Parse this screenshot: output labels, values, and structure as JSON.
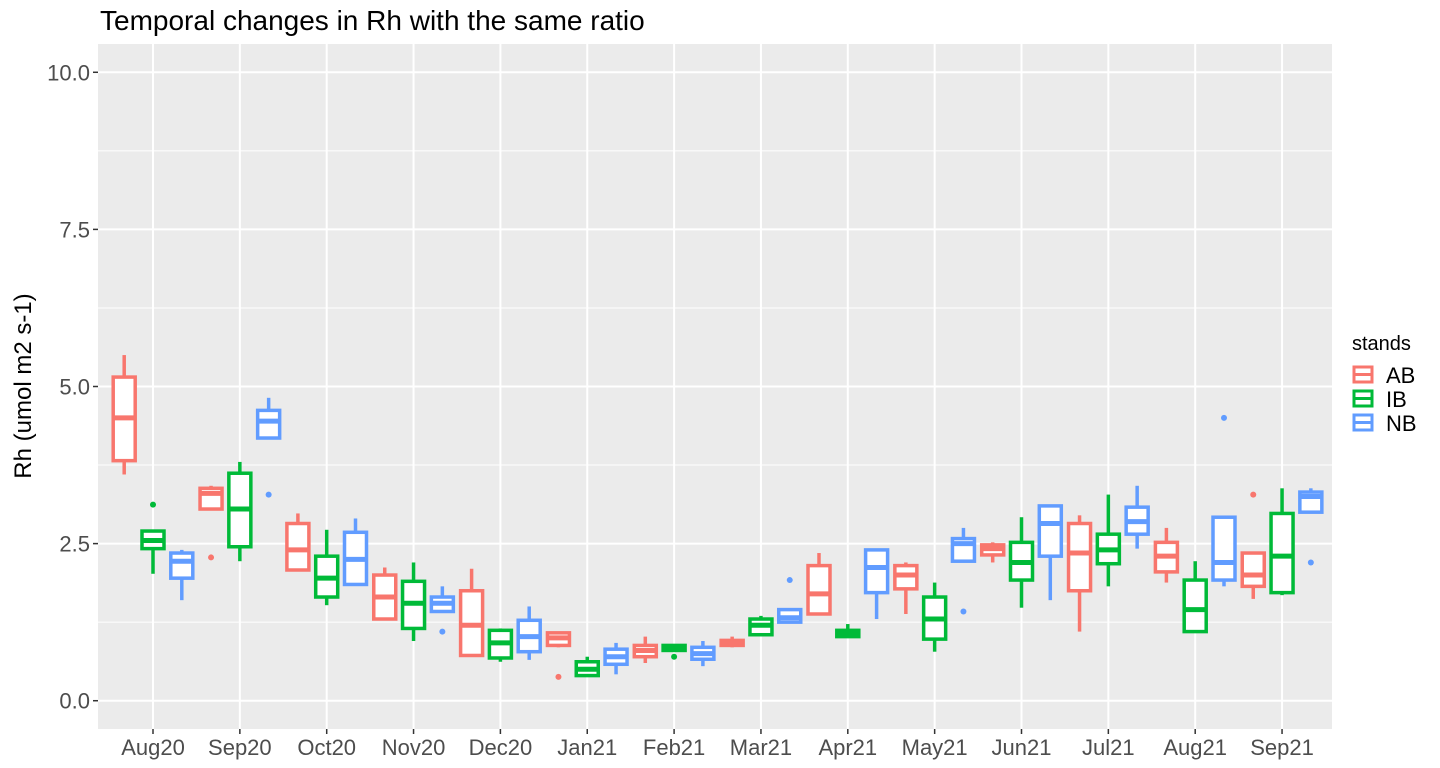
{
  "chart_data": {
    "type": "boxplot",
    "title": "Temporal changes in Rh with the same ratio",
    "xlabel": "",
    "ylabel": "Rh (umol m2 s-1)",
    "ylim": [
      -0.45,
      10.45
    ],
    "yticks": [
      0,
      2.5,
      5,
      7.5,
      10
    ],
    "ytick_labels": [
      "0.0",
      "2.5",
      "5.0",
      "7.5",
      "10.0"
    ],
    "grid": true,
    "categories": [
      "Aug20",
      "Sep20",
      "Oct20",
      "Nov20",
      "Dec20",
      "Jan21",
      "Feb21",
      "Mar21",
      "Apr21",
      "May21",
      "Jun21",
      "Jul21",
      "Aug21",
      "Sep21"
    ],
    "legend": {
      "title": "stands",
      "position": "right"
    },
    "series": [
      {
        "name": "AB",
        "color": "#F8766D",
        "boxes": [
          {
            "min": 3.6,
            "q1": 3.82,
            "median": 4.5,
            "q3": 5.15,
            "max": 5.5,
            "outliers": []
          },
          {
            "min": 3.05,
            "q1": 3.05,
            "median": 3.3,
            "q3": 3.38,
            "max": 3.42,
            "outliers": [
              2.28
            ]
          },
          {
            "min": 2.08,
            "q1": 2.08,
            "median": 2.4,
            "q3": 2.82,
            "max": 2.98,
            "outliers": []
          },
          {
            "min": 1.3,
            "q1": 1.3,
            "median": 1.65,
            "q3": 2.0,
            "max": 2.12,
            "outliers": []
          },
          {
            "min": 0.72,
            "q1": 0.72,
            "median": 1.2,
            "q3": 1.75,
            "max": 2.1,
            "outliers": []
          },
          {
            "min": 0.85,
            "q1": 0.88,
            "median": 1.0,
            "q3": 1.08,
            "max": 1.1,
            "outliers": [
              0.38
            ]
          },
          {
            "min": 0.6,
            "q1": 0.7,
            "median": 0.8,
            "q3": 0.88,
            "max": 1.02,
            "outliers": []
          },
          {
            "min": 0.85,
            "q1": 0.88,
            "median": 0.92,
            "q3": 0.96,
            "max": 1.02,
            "outliers": []
          },
          {
            "min": 1.38,
            "q1": 1.38,
            "median": 1.7,
            "q3": 2.15,
            "max": 2.35,
            "outliers": []
          },
          {
            "min": 1.38,
            "q1": 1.78,
            "median": 2.0,
            "q3": 2.15,
            "max": 2.2,
            "outliers": []
          },
          {
            "min": 2.2,
            "q1": 2.32,
            "median": 2.42,
            "q3": 2.48,
            "max": 2.52,
            "outliers": []
          },
          {
            "min": 1.1,
            "q1": 1.75,
            "median": 2.35,
            "q3": 2.82,
            "max": 2.95,
            "outliers": []
          },
          {
            "min": 1.88,
            "q1": 2.05,
            "median": 2.3,
            "q3": 2.52,
            "max": 2.75,
            "outliers": []
          },
          {
            "min": 1.62,
            "q1": 1.82,
            "median": 2.0,
            "q3": 2.35,
            "max": 2.35,
            "outliers": [
              3.28
            ]
          }
        ]
      },
      {
        "name": "IB",
        "color": "#00BA38",
        "boxes": [
          {
            "min": 2.02,
            "q1": 2.42,
            "median": 2.55,
            "q3": 2.7,
            "max": 2.72,
            "outliers": [
              3.12
            ]
          },
          {
            "min": 2.22,
            "q1": 2.45,
            "median": 3.05,
            "q3": 3.62,
            "max": 3.8,
            "outliers": []
          },
          {
            "min": 1.52,
            "q1": 1.65,
            "median": 1.95,
            "q3": 2.3,
            "max": 2.72,
            "outliers": []
          },
          {
            "min": 0.95,
            "q1": 1.15,
            "median": 1.55,
            "q3": 1.9,
            "max": 2.2,
            "outliers": []
          },
          {
            "min": 0.62,
            "q1": 0.68,
            "median": 0.92,
            "q3": 1.12,
            "max": 1.15,
            "outliers": []
          },
          {
            "min": 0.4,
            "q1": 0.4,
            "median": 0.5,
            "q3": 0.62,
            "max": 0.7,
            "outliers": []
          },
          {
            "min": 0.78,
            "q1": 0.8,
            "median": 0.85,
            "q3": 0.88,
            "max": 0.9,
            "outliers": [
              0.7
            ]
          },
          {
            "min": 1.05,
            "q1": 1.05,
            "median": 1.2,
            "q3": 1.3,
            "max": 1.35,
            "outliers": []
          },
          {
            "min": 1.0,
            "q1": 1.02,
            "median": 1.08,
            "q3": 1.12,
            "max": 1.22,
            "outliers": []
          },
          {
            "min": 0.78,
            "q1": 0.98,
            "median": 1.3,
            "q3": 1.65,
            "max": 1.88,
            "outliers": []
          },
          {
            "min": 1.48,
            "q1": 1.92,
            "median": 2.2,
            "q3": 2.52,
            "max": 2.92,
            "outliers": []
          },
          {
            "min": 1.82,
            "q1": 2.18,
            "median": 2.4,
            "q3": 2.65,
            "max": 3.28,
            "outliers": []
          },
          {
            "min": 1.1,
            "q1": 1.1,
            "median": 1.45,
            "q3": 1.92,
            "max": 2.22,
            "outliers": []
          },
          {
            "min": 1.68,
            "q1": 1.72,
            "median": 2.3,
            "q3": 2.98,
            "max": 3.38,
            "outliers": []
          }
        ]
      },
      {
        "name": "NB",
        "color": "#619CFF",
        "boxes": [
          {
            "min": 1.6,
            "q1": 1.95,
            "median": 2.22,
            "q3": 2.35,
            "max": 2.4,
            "outliers": []
          },
          {
            "min": 4.18,
            "q1": 4.18,
            "median": 4.45,
            "q3": 4.62,
            "max": 4.82,
            "outliers": [
              3.28
            ]
          },
          {
            "min": 1.85,
            "q1": 1.85,
            "median": 2.25,
            "q3": 2.68,
            "max": 2.9,
            "outliers": []
          },
          {
            "min": 1.42,
            "q1": 1.42,
            "median": 1.55,
            "q3": 1.65,
            "max": 1.82,
            "outliers": [
              1.1
            ]
          },
          {
            "min": 0.65,
            "q1": 0.78,
            "median": 1.02,
            "q3": 1.28,
            "max": 1.5,
            "outliers": []
          },
          {
            "min": 0.42,
            "q1": 0.58,
            "median": 0.7,
            "q3": 0.82,
            "max": 0.92,
            "outliers": []
          },
          {
            "min": 0.55,
            "q1": 0.66,
            "median": 0.75,
            "q3": 0.85,
            "max": 0.95,
            "outliers": []
          },
          {
            "min": 1.25,
            "q1": 1.25,
            "median": 1.32,
            "q3": 1.45,
            "max": 1.45,
            "outliers": [
              1.92
            ]
          },
          {
            "min": 1.3,
            "q1": 1.72,
            "median": 2.12,
            "q3": 2.4,
            "max": 2.4,
            "outliers": []
          },
          {
            "min": 2.22,
            "q1": 2.22,
            "median": 2.5,
            "q3": 2.58,
            "max": 2.75,
            "outliers": [
              1.42
            ]
          },
          {
            "min": 1.6,
            "q1": 2.3,
            "median": 2.82,
            "q3": 3.1,
            "max": 3.12,
            "outliers": []
          },
          {
            "min": 2.42,
            "q1": 2.65,
            "median": 2.85,
            "q3": 3.08,
            "max": 3.42,
            "outliers": []
          },
          {
            "min": 1.82,
            "q1": 1.92,
            "median": 2.2,
            "q3": 2.92,
            "max": 2.92,
            "outliers": [
              4.5
            ]
          },
          {
            "min": 3.0,
            "q1": 3.0,
            "median": 3.25,
            "q3": 3.32,
            "max": 3.38,
            "outliers": [
              2.2
            ]
          }
        ]
      }
    ]
  }
}
